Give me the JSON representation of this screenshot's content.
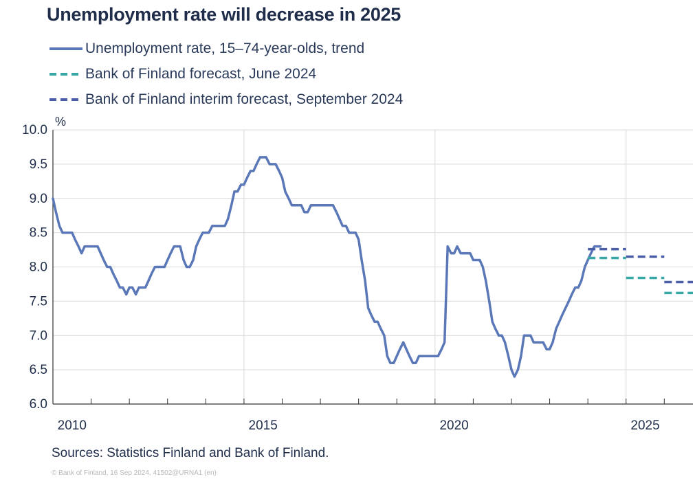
{
  "chart_data": {
    "type": "line",
    "title": "Unemployment rate will decrease in 2025",
    "ylabel": "%",
    "ylim": [
      6.0,
      10.0
    ],
    "xlim": [
      2010.0,
      2026.75
    ],
    "yticks": [
      "6.0",
      "6.5",
      "7.0",
      "7.5",
      "8.0",
      "8.5",
      "9.0",
      "9.5",
      "10.0"
    ],
    "xtick_labels": [
      {
        "x": 2010.5,
        "label": "2010"
      },
      {
        "x": 2015.5,
        "label": "2015"
      },
      {
        "x": 2020.5,
        "label": "2020"
      },
      {
        "x": 2025.5,
        "label": "2025"
      }
    ],
    "grid": {
      "horizontal": true,
      "vertical_major_years": [
        2015,
        2020,
        2025
      ]
    },
    "colors": {
      "trend": "#5a77b7",
      "june": "#38a8a6",
      "september": "#4a5da8"
    },
    "series": [
      {
        "name": "Unemployment rate, 15–74-year-olds, trend",
        "style": "solid",
        "points": [
          [
            2010.0,
            9.0
          ],
          [
            2010.08,
            8.8
          ],
          [
            2010.17,
            8.6
          ],
          [
            2010.25,
            8.5
          ],
          [
            2010.42,
            8.5
          ],
          [
            2010.5,
            8.5
          ],
          [
            2010.58,
            8.4
          ],
          [
            2010.67,
            8.3
          ],
          [
            2010.75,
            8.2
          ],
          [
            2010.83,
            8.3
          ],
          [
            2011.17,
            8.3
          ],
          [
            2011.25,
            8.2
          ],
          [
            2011.33,
            8.1
          ],
          [
            2011.42,
            8.0
          ],
          [
            2011.5,
            8.0
          ],
          [
            2011.58,
            7.9
          ],
          [
            2011.67,
            7.8
          ],
          [
            2011.75,
            7.7
          ],
          [
            2011.83,
            7.7
          ],
          [
            2011.92,
            7.6
          ],
          [
            2012.0,
            7.7
          ],
          [
            2012.08,
            7.7
          ],
          [
            2012.17,
            7.6
          ],
          [
            2012.25,
            7.7
          ],
          [
            2012.42,
            7.7
          ],
          [
            2012.5,
            7.8
          ],
          [
            2012.58,
            7.9
          ],
          [
            2012.67,
            8.0
          ],
          [
            2012.92,
            8.0
          ],
          [
            2013.0,
            8.1
          ],
          [
            2013.08,
            8.2
          ],
          [
            2013.17,
            8.3
          ],
          [
            2013.33,
            8.3
          ],
          [
            2013.42,
            8.1
          ],
          [
            2013.5,
            8.0
          ],
          [
            2013.58,
            8.0
          ],
          [
            2013.67,
            8.1
          ],
          [
            2013.75,
            8.3
          ],
          [
            2013.83,
            8.4
          ],
          [
            2013.92,
            8.5
          ],
          [
            2014.08,
            8.5
          ],
          [
            2014.17,
            8.6
          ],
          [
            2014.5,
            8.6
          ],
          [
            2014.58,
            8.7
          ],
          [
            2014.67,
            8.9
          ],
          [
            2014.75,
            9.1
          ],
          [
            2014.83,
            9.1
          ],
          [
            2014.92,
            9.2
          ],
          [
            2015.0,
            9.2
          ],
          [
            2015.08,
            9.3
          ],
          [
            2015.17,
            9.4
          ],
          [
            2015.25,
            9.4
          ],
          [
            2015.33,
            9.5
          ],
          [
            2015.42,
            9.6
          ],
          [
            2015.58,
            9.6
          ],
          [
            2015.67,
            9.5
          ],
          [
            2015.83,
            9.5
          ],
          [
            2015.92,
            9.4
          ],
          [
            2016.0,
            9.3
          ],
          [
            2016.08,
            9.1
          ],
          [
            2016.17,
            9.0
          ],
          [
            2016.25,
            8.9
          ],
          [
            2016.5,
            8.9
          ],
          [
            2016.58,
            8.8
          ],
          [
            2016.67,
            8.8
          ],
          [
            2016.75,
            8.9
          ],
          [
            2017.33,
            8.9
          ],
          [
            2017.42,
            8.8
          ],
          [
            2017.5,
            8.7
          ],
          [
            2017.58,
            8.6
          ],
          [
            2017.67,
            8.6
          ],
          [
            2017.75,
            8.5
          ],
          [
            2017.92,
            8.5
          ],
          [
            2018.0,
            8.4
          ],
          [
            2018.08,
            8.1
          ],
          [
            2018.17,
            7.8
          ],
          [
            2018.25,
            7.4
          ],
          [
            2018.33,
            7.3
          ],
          [
            2018.42,
            7.2
          ],
          [
            2018.5,
            7.2
          ],
          [
            2018.58,
            7.1
          ],
          [
            2018.67,
            7.0
          ],
          [
            2018.75,
            6.7
          ],
          [
            2018.83,
            6.6
          ],
          [
            2018.92,
            6.6
          ],
          [
            2019.0,
            6.7
          ],
          [
            2019.08,
            6.8
          ],
          [
            2019.17,
            6.9
          ],
          [
            2019.25,
            6.8
          ],
          [
            2019.33,
            6.7
          ],
          [
            2019.42,
            6.6
          ],
          [
            2019.5,
            6.6
          ],
          [
            2019.58,
            6.7
          ],
          [
            2020.08,
            6.7
          ],
          [
            2020.17,
            6.8
          ],
          [
            2020.25,
            6.9
          ],
          [
            2020.33,
            8.3
          ],
          [
            2020.42,
            8.2
          ],
          [
            2020.5,
            8.2
          ],
          [
            2020.58,
            8.3
          ],
          [
            2020.67,
            8.2
          ],
          [
            2020.92,
            8.2
          ],
          [
            2021.0,
            8.1
          ],
          [
            2021.17,
            8.1
          ],
          [
            2021.25,
            8.0
          ],
          [
            2021.33,
            7.8
          ],
          [
            2021.42,
            7.5
          ],
          [
            2021.5,
            7.2
          ],
          [
            2021.58,
            7.1
          ],
          [
            2021.67,
            7.0
          ],
          [
            2021.75,
            7.0
          ],
          [
            2021.83,
            6.9
          ],
          [
            2021.92,
            6.7
          ],
          [
            2022.0,
            6.5
          ],
          [
            2022.08,
            6.4
          ],
          [
            2022.17,
            6.5
          ],
          [
            2022.25,
            6.7
          ],
          [
            2022.33,
            7.0
          ],
          [
            2022.5,
            7.0
          ],
          [
            2022.58,
            6.9
          ],
          [
            2022.83,
            6.9
          ],
          [
            2022.92,
            6.8
          ],
          [
            2023.0,
            6.8
          ],
          [
            2023.08,
            6.9
          ],
          [
            2023.17,
            7.1
          ],
          [
            2023.25,
            7.2
          ],
          [
            2023.33,
            7.3
          ],
          [
            2023.5,
            7.5
          ],
          [
            2023.58,
            7.6
          ],
          [
            2023.67,
            7.7
          ],
          [
            2023.75,
            7.7
          ],
          [
            2023.83,
            7.8
          ],
          [
            2023.92,
            8.0
          ],
          [
            2024.0,
            8.1
          ],
          [
            2024.08,
            8.2
          ],
          [
            2024.17,
            8.3
          ],
          [
            2024.33,
            8.3
          ]
        ]
      },
      {
        "name": "Bank of Finland forecast, June 2024",
        "style": "dashed",
        "segments": [
          [
            [
              2024.0,
              8.13
            ],
            [
              2025.0,
              8.13
            ]
          ],
          [
            [
              2025.0,
              7.84
            ],
            [
              2026.0,
              7.84
            ]
          ],
          [
            [
              2026.0,
              7.62
            ],
            [
              2026.75,
              7.62
            ]
          ]
        ]
      },
      {
        "name": "Bank of Finland interim forecast, September 2024",
        "style": "dashed",
        "segments": [
          [
            [
              2024.0,
              8.26
            ],
            [
              2025.0,
              8.26
            ]
          ],
          [
            [
              2025.0,
              8.15
            ],
            [
              2026.0,
              8.15
            ]
          ],
          [
            [
              2026.0,
              7.78
            ],
            [
              2026.75,
              7.78
            ]
          ]
        ]
      }
    ]
  },
  "footer": {
    "source": "Sources: Statistics Finland and Bank of Finland.",
    "copyright": "© Bank of Finland, 16 Sep 2024, 41502@URNA1 (en)"
  }
}
